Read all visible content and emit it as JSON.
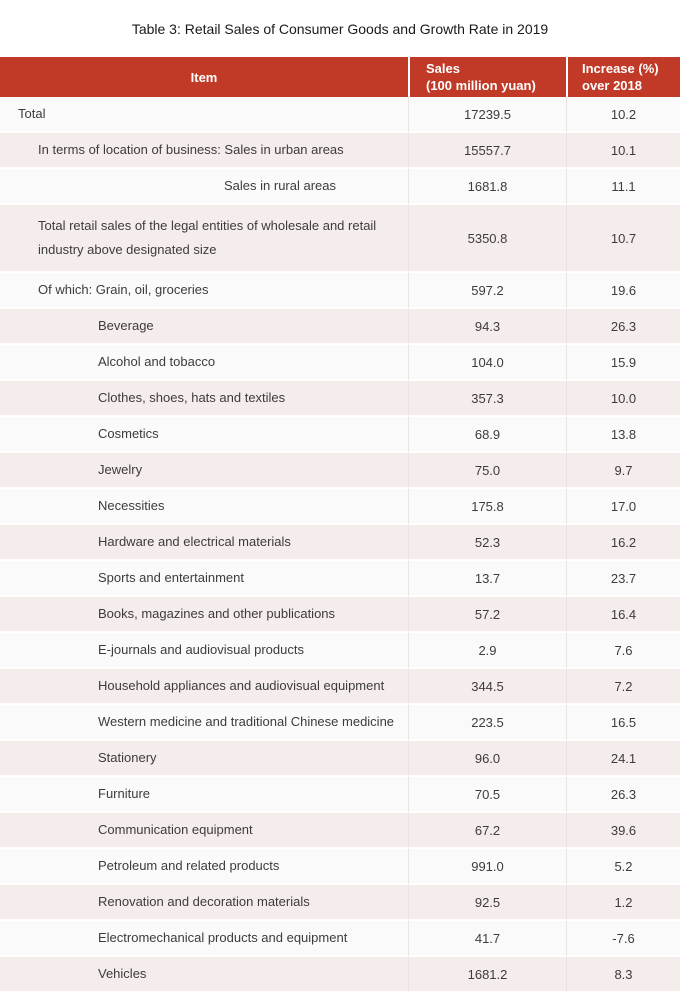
{
  "title": "Table 3: Retail Sales of Consumer Goods and Growth Rate in 2019",
  "colors": {
    "header_bg": "#c13a28",
    "header_text": "#ffffff",
    "row_plain": "#fbfafa",
    "row_shaded": "#f5edeb",
    "grid_line": "#eae3e1",
    "body_text": "#3c3c3c",
    "title_text": "#1a1a1a"
  },
  "table": {
    "headers": [
      {
        "label": "Item"
      },
      {
        "label": "Sales\n(100 million yuan)"
      },
      {
        "label": "Increase (%)\nover 2018"
      }
    ],
    "rows": [
      {
        "item": "Total",
        "sales": "17239.5",
        "increase": "10.2",
        "indent": 1
      },
      {
        "item": "In terms of location of business: Sales in urban areas",
        "sales": "15557.7",
        "increase": "10.1",
        "indent": 2
      },
      {
        "item": "Sales in rural areas",
        "sales": "1681.8",
        "increase": "11.1",
        "indent": 4
      },
      {
        "item": "Total retail sales of the legal entities of wholesale and retail industry above designated size",
        "sales": "5350.8",
        "increase": "10.7",
        "indent": 2,
        "tall": true
      },
      {
        "item": "Of which: Grain, oil, groceries",
        "sales": "597.2",
        "increase": "19.6",
        "indent": 2
      },
      {
        "item": "Beverage",
        "sales": "94.3",
        "increase": "26.3",
        "indent": 3
      },
      {
        "item": "Alcohol and tobacco",
        "sales": "104.0",
        "increase": "15.9",
        "indent": 3
      },
      {
        "item": "Clothes, shoes, hats and textiles",
        "sales": "357.3",
        "increase": "10.0",
        "indent": 3
      },
      {
        "item": "Cosmetics",
        "sales": "68.9",
        "increase": "13.8",
        "indent": 3
      },
      {
        "item": "Jewelry",
        "sales": "75.0",
        "increase": "9.7",
        "indent": 3
      },
      {
        "item": "Necessities",
        "sales": "175.8",
        "increase": "17.0",
        "indent": 3
      },
      {
        "item": "Hardware and electrical materials",
        "sales": "52.3",
        "increase": "16.2",
        "indent": 3
      },
      {
        "item": "Sports and entertainment",
        "sales": "13.7",
        "increase": "23.7",
        "indent": 3
      },
      {
        "item": "Books, magazines and other publications",
        "sales": "57.2",
        "increase": "16.4",
        "indent": 3
      },
      {
        "item": "E-journals and audiovisual products",
        "sales": "2.9",
        "increase": "7.6",
        "indent": 3
      },
      {
        "item": "Household appliances and audiovisual equipment",
        "sales": "344.5",
        "increase": "7.2",
        "indent": 3
      },
      {
        "item": "Western medicine and traditional Chinese medicine",
        "sales": "223.5",
        "increase": "16.5",
        "indent": 3
      },
      {
        "item": "Stationery",
        "sales": "96.0",
        "increase": "24.1",
        "indent": 3
      },
      {
        "item": "Furniture",
        "sales": "70.5",
        "increase": "26.3",
        "indent": 3
      },
      {
        "item": "Communication equipment",
        "sales": "67.2",
        "increase": "39.6",
        "indent": 3
      },
      {
        "item": "Petroleum and related products",
        "sales": "991.0",
        "increase": "5.2",
        "indent": 3
      },
      {
        "item": "Renovation and decoration materials",
        "sales": "92.5",
        "increase": "1.2",
        "indent": 3
      },
      {
        "item": "Electromechanical products and equipment",
        "sales": "41.7",
        "increase": "-7.6",
        "indent": 3
      },
      {
        "item": "Vehicles",
        "sales": "1681.2",
        "increase": "8.3",
        "indent": 3
      }
    ]
  },
  "chart_data": {
    "type": "table",
    "title": "Table 3: Retail Sales of Consumer Goods and Growth Rate in 2019",
    "columns": [
      "Item",
      "Sales (100 million yuan)",
      "Increase (%) over 2018"
    ],
    "rows": [
      [
        "Total",
        17239.5,
        10.2
      ],
      [
        "In terms of location of business: Sales in urban areas",
        15557.7,
        10.1
      ],
      [
        "Sales in rural areas",
        1681.8,
        11.1
      ],
      [
        "Total retail sales of the legal entities of wholesale and retail industry above designated size",
        5350.8,
        10.7
      ],
      [
        "Of which: Grain, oil, groceries",
        597.2,
        19.6
      ],
      [
        "Beverage",
        94.3,
        26.3
      ],
      [
        "Alcohol and tobacco",
        104.0,
        15.9
      ],
      [
        "Clothes, shoes, hats and textiles",
        357.3,
        10.0
      ],
      [
        "Cosmetics",
        68.9,
        13.8
      ],
      [
        "Jewelry",
        75.0,
        9.7
      ],
      [
        "Necessities",
        175.8,
        17.0
      ],
      [
        "Hardware and electrical materials",
        52.3,
        16.2
      ],
      [
        "Sports and entertainment",
        13.7,
        23.7
      ],
      [
        "Books, magazines and other publications",
        57.2,
        16.4
      ],
      [
        "E-journals and audiovisual products",
        2.9,
        7.6
      ],
      [
        "Household appliances and audiovisual equipment",
        344.5,
        7.2
      ],
      [
        "Western medicine and traditional Chinese medicine",
        223.5,
        16.5
      ],
      [
        "Stationery",
        96.0,
        24.1
      ],
      [
        "Furniture",
        70.5,
        26.3
      ],
      [
        "Communication equipment",
        67.2,
        39.6
      ],
      [
        "Petroleum and related products",
        991.0,
        5.2
      ],
      [
        "Renovation and decoration materials",
        92.5,
        1.2
      ],
      [
        "Electromechanical products and equipment",
        41.7,
        -7.6
      ],
      [
        "Vehicles",
        1681.2,
        8.3
      ]
    ]
  }
}
